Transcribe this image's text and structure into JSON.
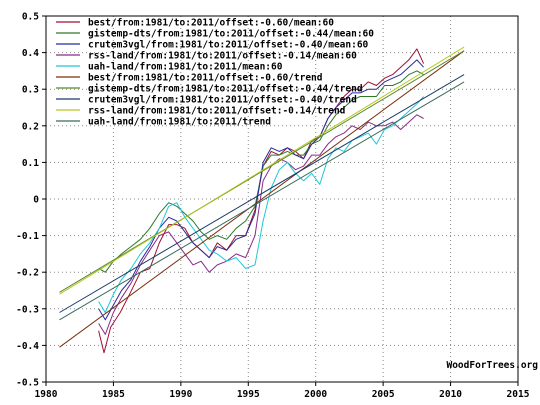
{
  "credit": "WoodForTrees.org",
  "chart_data": {
    "type": "line",
    "title": "",
    "xlabel": "",
    "ylabel": "",
    "xlim": [
      1980,
      2015
    ],
    "ylim": [
      -0.5,
      0.5
    ],
    "x_ticks": [
      1980,
      1985,
      1990,
      1995,
      2000,
      2005,
      2010,
      2015
    ],
    "y_ticks": [
      -0.5,
      -0.4,
      -0.3,
      -0.2,
      -0.1,
      0,
      0.1,
      0.2,
      0.3,
      0.4,
      0.5
    ],
    "grid": true,
    "legend_position": "top-left",
    "series": [
      {
        "name": "best/from:1981/to:2011/offset:-0.60/mean:60",
        "color": "#a01030",
        "x": [
          1983.9,
          1984.3,
          1984.8,
          1985.5,
          1986.2,
          1987.0,
          1987.7,
          1988.4,
          1989.1,
          1989.7,
          1990.3,
          1990.9,
          1991.5,
          1992.1,
          1992.7,
          1993.4,
          1994.1,
          1994.8,
          1995.5,
          1996.1,
          1996.7,
          1997.3,
          1997.9,
          1998.5,
          1999.1,
          1999.7,
          2000.3,
          2000.9,
          2001.5,
          2002.1,
          2002.7,
          2003.3,
          2003.9,
          2004.5,
          2005.1,
          2005.7,
          2006.3,
          2006.9,
          2007.5,
          2008.0
        ],
        "y": [
          -0.36,
          -0.42,
          -0.35,
          -0.31,
          -0.26,
          -0.2,
          -0.19,
          -0.12,
          -0.07,
          -0.07,
          -0.08,
          -0.12,
          -0.14,
          -0.16,
          -0.12,
          -0.14,
          -0.1,
          -0.1,
          -0.03,
          0.09,
          0.13,
          0.12,
          0.14,
          0.13,
          0.11,
          0.16,
          0.17,
          0.22,
          0.25,
          0.28,
          0.3,
          0.3,
          0.32,
          0.31,
          0.33,
          0.34,
          0.36,
          0.38,
          0.41,
          0.37
        ]
      },
      {
        "name": "gistemp-dts/from:1981/to:2011/offset:-0.44/mean:60",
        "color": "#2a7a2a",
        "x": [
          1983.9,
          1984.4,
          1985.0,
          1985.6,
          1986.3,
          1987.0,
          1987.7,
          1988.4,
          1989.1,
          1989.7,
          1990.3,
          1990.9,
          1991.5,
          1992.1,
          1992.7,
          1993.4,
          1994.1,
          1994.8,
          1995.5,
          1996.1,
          1996.7,
          1997.3,
          1997.9,
          1998.5,
          1999.1,
          1999.7,
          2000.3,
          2000.9,
          2001.5,
          2002.1,
          2002.7,
          2003.3,
          2003.9,
          2004.5,
          2005.1,
          2005.7,
          2006.3,
          2006.9,
          2007.5,
          2008.0
        ],
        "y": [
          -0.19,
          -0.2,
          -0.17,
          -0.15,
          -0.13,
          -0.11,
          -0.08,
          -0.04,
          -0.01,
          -0.02,
          -0.04,
          -0.06,
          -0.09,
          -0.11,
          -0.1,
          -0.11,
          -0.08,
          -0.06,
          -0.02,
          0.09,
          0.12,
          0.12,
          0.13,
          0.12,
          0.12,
          0.15,
          0.16,
          0.2,
          0.23,
          0.25,
          0.27,
          0.28,
          0.28,
          0.28,
          0.31,
          0.31,
          0.32,
          0.34,
          0.35,
          0.34
        ]
      },
      {
        "name": "crutem3vgl/from:1981/to:2011/offset:-0.40/mean:60",
        "color": "#2a2aa0",
        "x": [
          1983.9,
          1984.4,
          1985.0,
          1985.6,
          1986.3,
          1987.0,
          1987.7,
          1988.4,
          1989.1,
          1989.7,
          1990.3,
          1990.9,
          1991.5,
          1992.1,
          1992.7,
          1993.4,
          1994.1,
          1994.8,
          1995.5,
          1996.1,
          1996.7,
          1997.3,
          1997.9,
          1998.5,
          1999.1,
          1999.7,
          2000.3,
          2000.9,
          2001.5,
          2002.1,
          2002.7,
          2003.3,
          2003.9,
          2004.5,
          2005.1,
          2005.7,
          2006.3,
          2006.9,
          2007.5,
          2008.0
        ],
        "y": [
          -0.3,
          -0.33,
          -0.29,
          -0.25,
          -0.22,
          -0.17,
          -0.13,
          -0.08,
          -0.05,
          -0.06,
          -0.09,
          -0.12,
          -0.14,
          -0.16,
          -0.13,
          -0.14,
          -0.11,
          -0.1,
          -0.04,
          0.1,
          0.14,
          0.13,
          0.14,
          0.12,
          0.11,
          0.15,
          0.17,
          0.22,
          0.25,
          0.27,
          0.29,
          0.29,
          0.3,
          0.3,
          0.32,
          0.33,
          0.34,
          0.36,
          0.38,
          0.36
        ]
      },
      {
        "name": "rss-land/from:1981/to:2011/offset:-0.14/mean:60",
        "color": "#8a2a8a",
        "x": [
          1983.9,
          1984.4,
          1985.0,
          1985.6,
          1986.3,
          1987.0,
          1987.7,
          1988.4,
          1989.1,
          1989.7,
          1990.3,
          1990.9,
          1991.5,
          1992.1,
          1992.7,
          1993.4,
          1994.1,
          1994.8,
          1995.5,
          1996.1,
          1996.7,
          1997.3,
          1997.9,
          1998.5,
          1999.1,
          1999.7,
          2000.3,
          2000.9,
          2001.5,
          2002.1,
          2002.7,
          2003.3,
          2003.9,
          2004.5,
          2005.1,
          2005.7,
          2006.3,
          2006.9,
          2007.5,
          2008.0
        ],
        "y": [
          -0.34,
          -0.37,
          -0.31,
          -0.27,
          -0.23,
          -0.18,
          -0.14,
          -0.1,
          -0.09,
          -0.12,
          -0.15,
          -0.18,
          -0.17,
          -0.2,
          -0.18,
          -0.17,
          -0.15,
          -0.16,
          -0.1,
          0.05,
          0.09,
          0.11,
          0.1,
          0.08,
          0.09,
          0.12,
          0.12,
          0.15,
          0.17,
          0.18,
          0.2,
          0.19,
          0.21,
          0.2,
          0.2,
          0.21,
          0.19,
          0.21,
          0.23,
          0.22
        ]
      },
      {
        "name": "uah-land/from:1981/to:2011/mean:60",
        "color": "#20c8d8",
        "x": [
          1983.9,
          1984.4,
          1985.0,
          1985.6,
          1986.3,
          1987.0,
          1987.7,
          1988.4,
          1989.1,
          1989.7,
          1990.3,
          1990.9,
          1991.5,
          1992.1,
          1992.7,
          1993.4,
          1994.1,
          1994.8,
          1995.5,
          1996.1,
          1996.7,
          1997.3,
          1997.9,
          1998.5,
          1999.1,
          1999.7,
          2000.3,
          2000.9,
          2001.5,
          2002.1,
          2002.7,
          2003.3,
          2003.9,
          2004.5,
          2005.1,
          2005.7,
          2006.3,
          2006.9,
          2007.5,
          2008.0
        ],
        "y": [
          -0.28,
          -0.31,
          -0.26,
          -0.22,
          -0.19,
          -0.15,
          -0.12,
          -0.08,
          -0.02,
          -0.01,
          -0.05,
          -0.08,
          -0.11,
          -0.14,
          -0.15,
          -0.17,
          -0.16,
          -0.19,
          -0.18,
          -0.06,
          0.03,
          0.08,
          0.1,
          0.07,
          0.05,
          0.07,
          0.04,
          0.11,
          0.14,
          0.13,
          0.16,
          0.17,
          0.18,
          0.15,
          0.19,
          0.2,
          0.22,
          0.24,
          0.26,
          0.28
        ]
      },
      {
        "name": "best/from:1981/to:2011/offset:-0.60/trend",
        "color": "#7a3010",
        "x": [
          1981,
          2011
        ],
        "y": [
          -0.405,
          0.405
        ]
      },
      {
        "name": "gistemp-dts/from:1981/to:2011/offset:-0.44/trend",
        "color": "#5a8a2a",
        "x": [
          1981,
          2011
        ],
        "y": [
          -0.255,
          0.405
        ]
      },
      {
        "name": "crutem3vgl/from:1981/to:2011/offset:-0.40/trend",
        "color": "#1a3a6a",
        "x": [
          1981,
          2011
        ],
        "y": [
          -0.31,
          0.34
        ]
      },
      {
        "name": "rss-land/from:1981/to:2011/offset:-0.14/trend",
        "color": "#b8c820",
        "x": [
          1981,
          2011
        ],
        "y": [
          -0.26,
          0.415
        ]
      },
      {
        "name": "uah-land/from:1981/to:2011/trend",
        "color": "#3a6a5a",
        "x": [
          1981,
          2011
        ],
        "y": [
          -0.33,
          0.32
        ]
      }
    ]
  }
}
